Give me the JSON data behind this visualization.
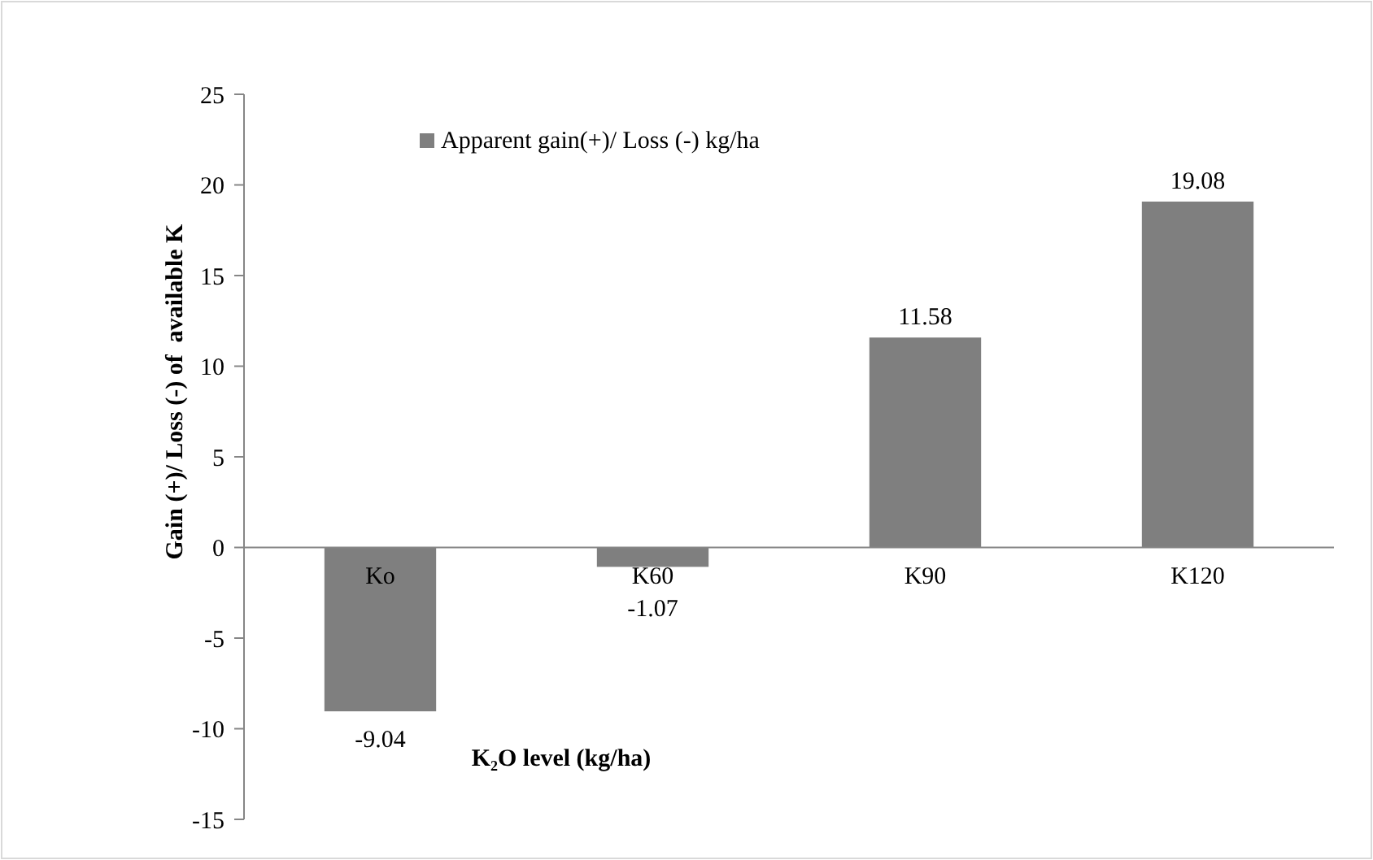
{
  "chart_data": {
    "type": "bar",
    "xlabel": "K₂O level (kg/ha)",
    "ylabel": "Gain (+)/ Loss (-) of  available K",
    "categories": [
      "Ko",
      "K60",
      "K90",
      "K120"
    ],
    "series": [
      {
        "name": "Apparent gain(+)/ Loss (-) kg/ha",
        "color": "#7f7f7f",
        "values": [
          -9.04,
          -1.07,
          11.58,
          19.08
        ]
      }
    ],
    "ylim": [
      -15,
      25
    ],
    "yticks": [
      -15,
      -10,
      -5,
      0,
      5,
      10,
      15,
      20,
      25
    ],
    "grid": false,
    "legend": "top",
    "data_labels": true
  }
}
